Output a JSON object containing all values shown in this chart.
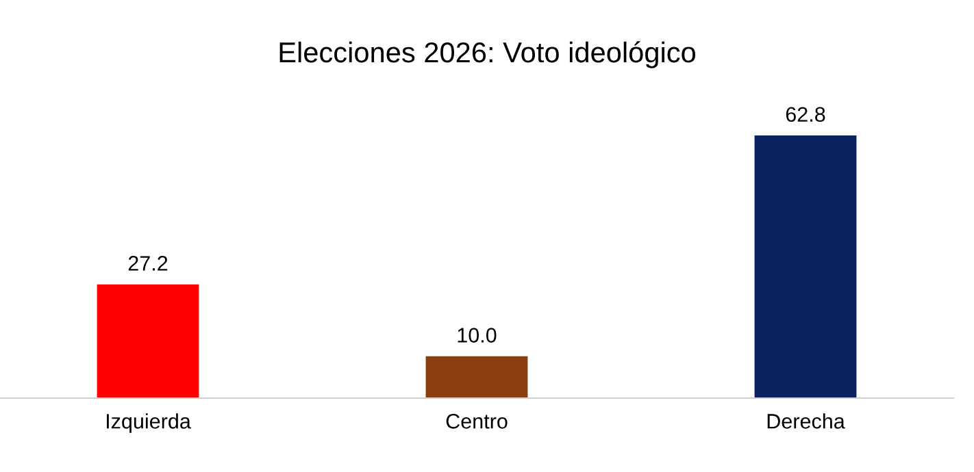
{
  "chart_data": {
    "type": "bar",
    "title": "Elecciones 2026: Voto ideológico",
    "categories": [
      "Izquierda",
      "Centro",
      "Derecha"
    ],
    "values": [
      27.2,
      10.0,
      62.8
    ],
    "value_labels": [
      "27.2",
      "10.0",
      "62.8"
    ],
    "colors": [
      "#ff0000",
      "#8b3e0f",
      "#0d2260"
    ],
    "grid": false,
    "legend": false
  }
}
